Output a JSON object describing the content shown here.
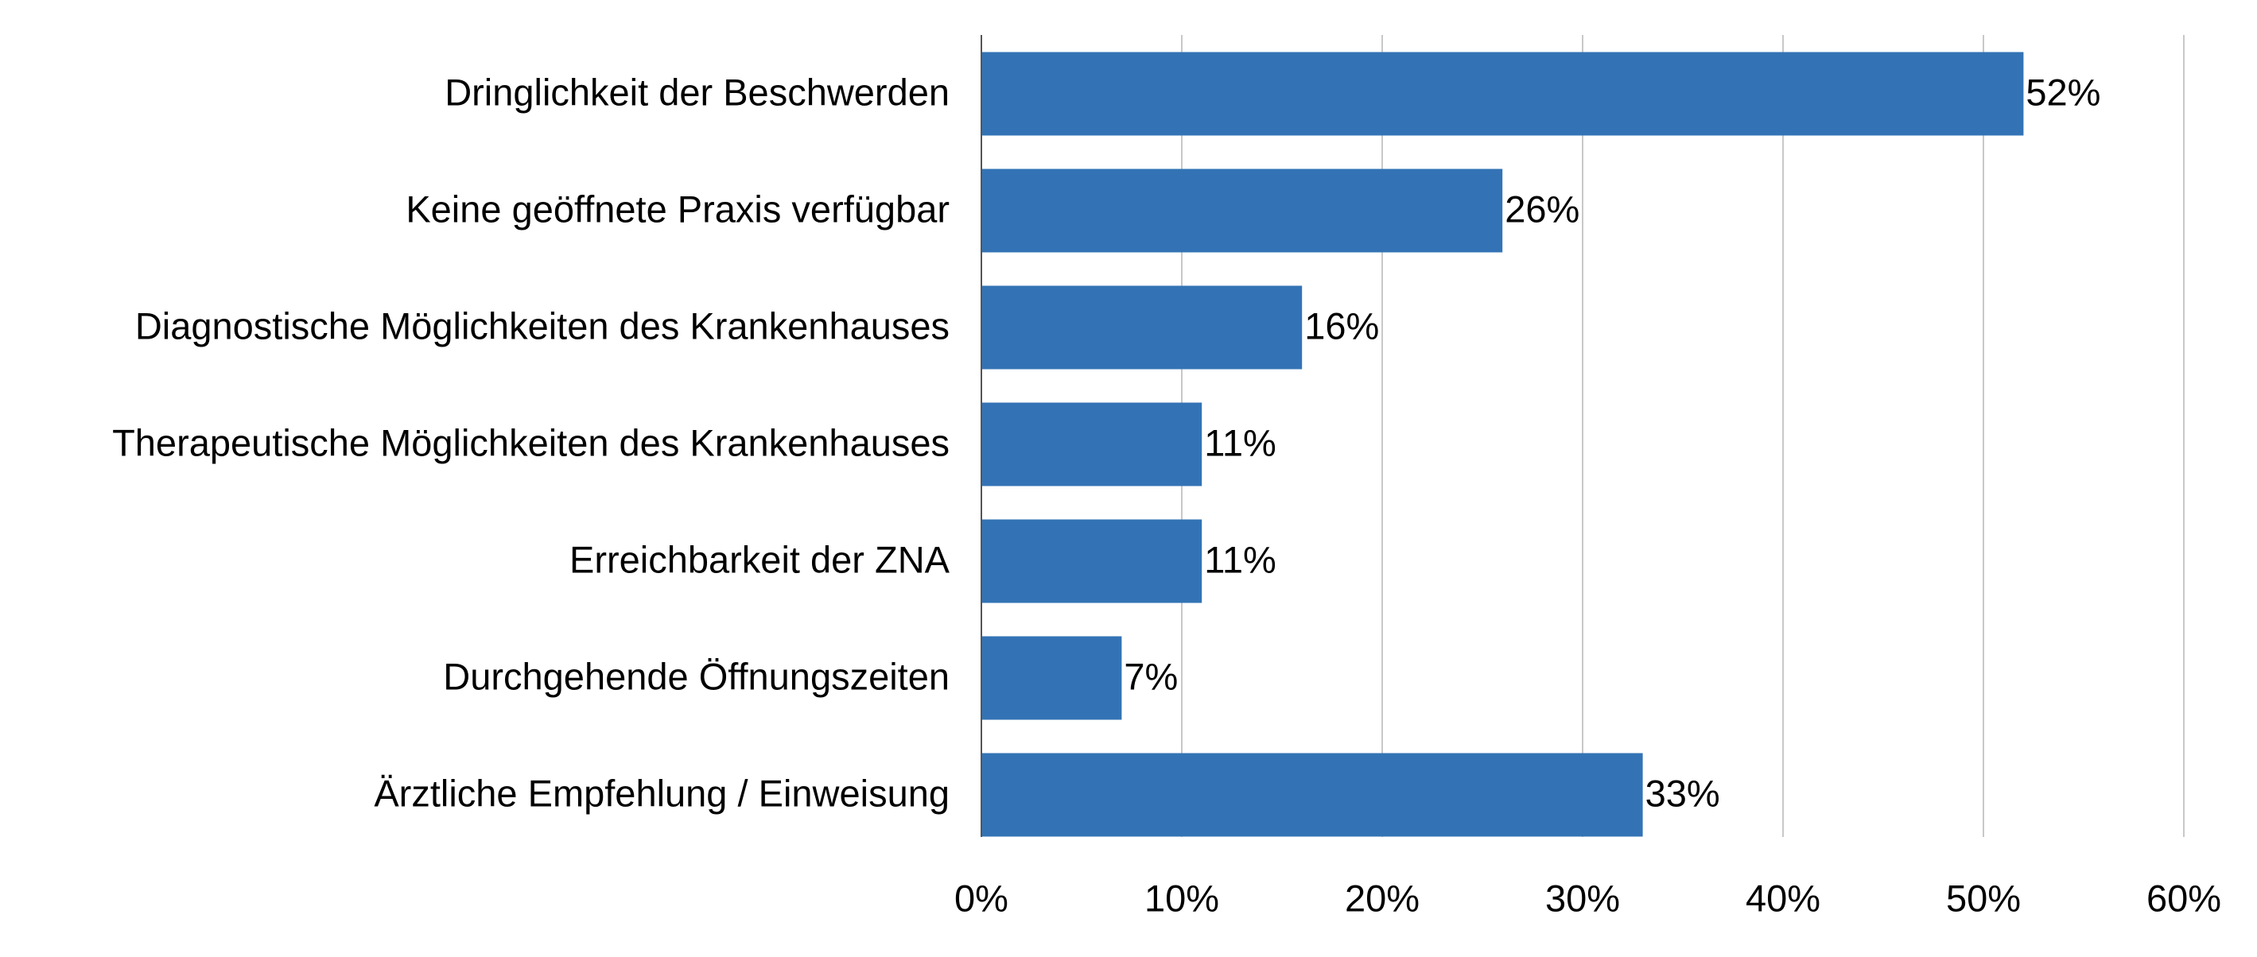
{
  "chart_data": {
    "type": "hbar",
    "categories": [
      "Dringlichkeit der Beschwerden",
      "Keine geöffnete Praxis verfügbar",
      "Diagnostische Möglichkeiten des Krankenhauses",
      "Therapeutische Möglichkeiten des Krankenhauses",
      "Erreichbarkeit der ZNA",
      "Durchgehende Öffnungszeiten",
      "Ärztliche Empfehlung / Einweisung"
    ],
    "values": [
      52,
      26,
      16,
      11,
      11,
      7,
      33
    ],
    "value_labels": [
      "52%",
      "26%",
      "16%",
      "11%",
      "11%",
      "7%",
      "33%"
    ],
    "color": "#3373b5",
    "xlim": [
      0,
      60
    ],
    "xticks": [
      {
        "value": 0,
        "label": "0%"
      },
      {
        "value": 10,
        "label": "10%"
      },
      {
        "value": 20,
        "label": "20%"
      },
      {
        "value": 30,
        "label": "30%"
      },
      {
        "value": 40,
        "label": "40%"
      },
      {
        "value": 50,
        "label": "50%"
      },
      {
        "value": 60,
        "label": "60%"
      }
    ],
    "grid": true
  }
}
